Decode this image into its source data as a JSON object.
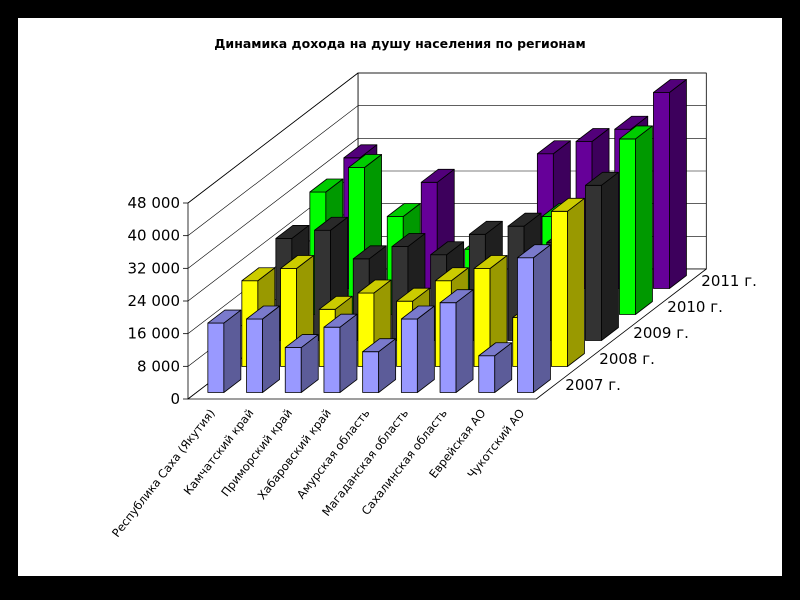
{
  "chart_data": {
    "type": "bar",
    "title": "Динамика дохода на душу населения по регионам",
    "categories": [
      "Республика Саха (Якутия)",
      "Камчатский край",
      "Приморский край",
      "Хабаровский край",
      "Амурская область",
      "Магаданская область",
      "Сахалинская область",
      "Еврейская АО",
      "Чукотский АО"
    ],
    "series": [
      {
        "name": "2007 г.",
        "color": "#9999ff",
        "values": [
          17000,
          18000,
          11000,
          16000,
          10000,
          18000,
          22000,
          9000,
          33000
        ]
      },
      {
        "name": "2008 г.",
        "color": "#ffff00",
        "values": [
          21000,
          24000,
          14000,
          18000,
          16000,
          21000,
          24000,
          12000,
          38000
        ]
      },
      {
        "name": "2009 г.",
        "color": "#333333",
        "values": [
          25000,
          27000,
          20000,
          23000,
          21000,
          26000,
          28000,
          24000,
          38000
        ]
      },
      {
        "name": "2010 г.",
        "color": "#00ff00",
        "values": [
          30000,
          36000,
          24000,
          0,
          16000,
          0,
          24000,
          0,
          43000
        ]
      },
      {
        "name": "2011 г.",
        "color": "#660099",
        "values": [
          32000,
          0,
          26000,
          0,
          0,
          33000,
          36000,
          39000,
          48000
        ]
      }
    ],
    "ytick_labels": [
      "0",
      "8 000",
      "16 000",
      "24 000",
      "32 000",
      "40 000",
      "48 000"
    ],
    "ylim": [
      0,
      48000
    ],
    "grid": true,
    "legend": "none"
  }
}
